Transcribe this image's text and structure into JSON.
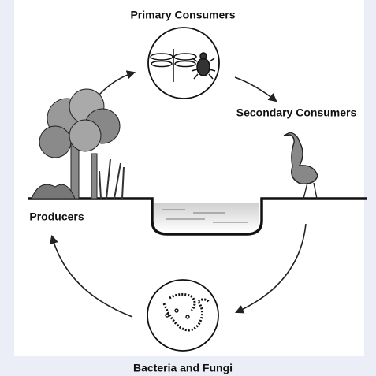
{
  "nodes": [
    {
      "label": "Primary Consumers"
    },
    {
      "label": "Secondary Consumers"
    },
    {
      "label": "Producers"
    },
    {
      "label": "Bacteria and Fungi"
    }
  ]
}
